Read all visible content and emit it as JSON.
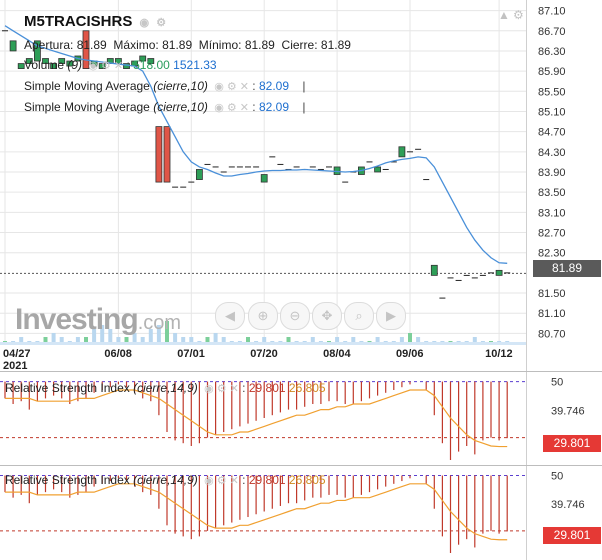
{
  "instrument": {
    "symbol": "M5TRACISHRS",
    "ohlc": {
      "open_label": "Apertura:",
      "open_value": "81.89",
      "high_label": "Máximo:",
      "high_value": "81.89",
      "low_label": "Mínimo:",
      "low_value": "81.89",
      "close_label": "Cierre:",
      "close_value": "81.89"
    },
    "volume": {
      "label": "Volume",
      "param": "(9)",
      "value_1": "518.00",
      "value_2": "1521.33"
    },
    "sma_1": {
      "label": "Simple Moving Average",
      "param": "(cierre,10)",
      "value": "82.09"
    },
    "sma_2": {
      "label": "Simple Moving Average",
      "param": "(cierre,10)",
      "value": "82.09"
    },
    "current_price": "81.89"
  },
  "watermark": {
    "brand": "Investing",
    "suffix": ".com"
  },
  "colors": {
    "sma": "#4a90d9",
    "bull": "#2e9e57",
    "bear": "#e05547",
    "rsi_bar": "#c0392b",
    "rsi_ma": "#f0a030",
    "grid": "#e6e6e6",
    "price_box": "#5a5a5a",
    "rsi_box": "#e53935"
  },
  "icons": [
    "eye-icon",
    "gear-icon",
    "close-icon",
    "arrow-left-icon",
    "zoom-in-icon",
    "zoom-out-icon",
    "crosshair-icon",
    "search-icon",
    "arrow-right-icon",
    "triangle-icon"
  ],
  "chart_data": [
    {
      "type": "candlestick",
      "title": "M5TRACISHRS",
      "x_axis": [
        "04/27",
        "06/08",
        "07/01",
        "07/20",
        "08/04",
        "09/06",
        "10/12"
      ],
      "x_year_label": "2021",
      "y_ticks": [
        80.7,
        81.1,
        81.5,
        81.89,
        82.3,
        82.7,
        83.1,
        83.5,
        83.9,
        84.3,
        84.7,
        85.1,
        85.5,
        85.9,
        86.3,
        86.7,
        87.1
      ],
      "y_tick_labels": [
        "80.70",
        "81.10",
        "81.50",
        "82.30",
        "82.70",
        "83.10",
        "83.50",
        "83.90",
        "84.30",
        "84.70",
        "85.10",
        "85.50",
        "85.90",
        "86.30",
        "86.70",
        "87.10"
      ],
      "ylim": [
        80.47,
        87.31
      ],
      "grid": true,
      "candles": [
        {
          "i": 0,
          "o": 86.7,
          "c": 86.7
        },
        {
          "i": 1,
          "o": 86.3,
          "c": 86.5
        },
        {
          "i": 2,
          "o": 85.95,
          "c": 86.05
        },
        {
          "i": 3,
          "o": 86.05,
          "c": 86.15
        },
        {
          "i": 4,
          "o": 86.1,
          "c": 86.5
        },
        {
          "i": 5,
          "o": 86.05,
          "c": 86.15
        },
        {
          "i": 6,
          "o": 85.95,
          "c": 86.05
        },
        {
          "i": 7,
          "o": 86.05,
          "c": 86.15
        },
        {
          "i": 8,
          "o": 86.0,
          "c": 86.1
        },
        {
          "i": 9,
          "o": 86.1,
          "c": 86.2
        },
        {
          "i": 10,
          "o": 86.7,
          "c": 85.95
        },
        {
          "i": 11,
          "o": 86.0,
          "c": 86.1
        },
        {
          "i": 12,
          "o": 85.95,
          "c": 86.05
        },
        {
          "i": 13,
          "o": 86.05,
          "c": 86.15
        },
        {
          "i": 14,
          "o": 86.05,
          "c": 86.15
        },
        {
          "i": 15,
          "o": 85.95,
          "c": 86.05
        },
        {
          "i": 16,
          "o": 86.0,
          "c": 86.1
        },
        {
          "i": 17,
          "o": 86.1,
          "c": 86.2
        },
        {
          "i": 18,
          "o": 86.05,
          "c": 86.15
        },
        {
          "i": 19,
          "o": 84.8,
          "c": 83.7
        },
        {
          "i": 20,
          "o": 84.8,
          "c": 83.7
        },
        {
          "i": 21,
          "o": 83.6,
          "c": 83.6
        },
        {
          "i": 22,
          "o": 83.6,
          "c": 83.6
        },
        {
          "i": 23,
          "o": 83.7,
          "c": 83.7
        },
        {
          "i": 24,
          "o": 83.75,
          "c": 83.95
        },
        {
          "i": 25,
          "o": 84.05,
          "c": 84.05
        },
        {
          "i": 26,
          "o": 84.0,
          "c": 84.0
        },
        {
          "i": 27,
          "o": 83.9,
          "c": 83.9
        },
        {
          "i": 28,
          "o": 84.0,
          "c": 84.0
        },
        {
          "i": 29,
          "o": 84.0,
          "c": 84.0
        },
        {
          "i": 30,
          "o": 84.0,
          "c": 84.0
        },
        {
          "i": 31,
          "o": 84.0,
          "c": 84.0
        },
        {
          "i": 32,
          "o": 83.7,
          "c": 83.85
        },
        {
          "i": 33,
          "o": 84.2,
          "c": 84.2
        },
        {
          "i": 34,
          "o": 84.05,
          "c": 84.05
        },
        {
          "i": 35,
          "o": 83.95,
          "c": 83.95
        },
        {
          "i": 36,
          "o": 84.0,
          "c": 84.0
        },
        {
          "i": 37,
          "o": 83.95,
          "c": 83.95
        },
        {
          "i": 38,
          "o": 84.0,
          "c": 84.0
        },
        {
          "i": 39,
          "o": 83.95,
          "c": 83.95
        },
        {
          "i": 40,
          "o": 84.0,
          "c": 84.0
        },
        {
          "i": 41,
          "o": 83.85,
          "c": 84.0
        },
        {
          "i": 42,
          "o": 83.7,
          "c": 83.7
        },
        {
          "i": 43,
          "o": 83.9,
          "c": 83.9
        },
        {
          "i": 44,
          "o": 83.85,
          "c": 84.0
        },
        {
          "i": 45,
          "o": 84.1,
          "c": 84.1
        },
        {
          "i": 46,
          "o": 83.9,
          "c": 84.0
        },
        {
          "i": 47,
          "o": 83.95,
          "c": 83.95
        },
        {
          "i": 48,
          "o": 84.1,
          "c": 84.1
        },
        {
          "i": 49,
          "o": 84.2,
          "c": 84.4
        },
        {
          "i": 50,
          "o": 84.3,
          "c": 84.3
        },
        {
          "i": 51,
          "o": 84.35,
          "c": 84.35
        },
        {
          "i": 52,
          "o": 83.75,
          "c": 83.75
        },
        {
          "i": 53,
          "o": 81.85,
          "c": 82.05
        },
        {
          "i": 54,
          "o": 81.4,
          "c": 81.4
        },
        {
          "i": 55,
          "o": 81.8,
          "c": 81.8
        },
        {
          "i": 56,
          "o": 81.75,
          "c": 81.75
        },
        {
          "i": 57,
          "o": 81.85,
          "c": 81.85
        },
        {
          "i": 58,
          "o": 81.8,
          "c": 81.8
        },
        {
          "i": 59,
          "o": 81.85,
          "c": 81.85
        },
        {
          "i": 60,
          "o": 81.9,
          "c": 81.9
        },
        {
          "i": 61,
          "o": 81.85,
          "c": 81.95
        },
        {
          "i": 62,
          "o": 81.9,
          "c": 81.9
        }
      ],
      "sma": [
        86.8,
        86.7,
        86.6,
        86.5,
        86.4,
        86.35,
        86.3,
        86.25,
        86.2,
        86.15,
        86.12,
        86.1,
        86.08,
        86.06,
        86.04,
        86.02,
        86.0,
        85.9,
        85.6,
        85.2,
        84.9,
        84.6,
        84.3,
        84.1,
        84.0,
        83.95,
        83.88,
        83.82,
        83.82,
        83.85,
        83.87,
        83.9,
        83.92,
        83.93,
        83.93,
        83.94,
        83.94,
        83.95,
        83.94,
        83.93,
        83.92,
        83.91,
        83.9,
        83.91,
        83.93,
        83.97,
        84.02,
        84.08,
        84.12,
        84.15,
        84.17,
        84.2,
        84.18,
        84.0,
        83.7,
        83.4,
        83.1,
        82.8,
        82.55,
        82.35,
        82.2,
        82.1,
        82.09
      ]
    },
    {
      "type": "bar",
      "name": "Relative Strength Index",
      "param": "(cierre,14,9)",
      "value_1": "29.801",
      "value_2": "26.805",
      "y_ticks": [
        39.746,
        50
      ],
      "y_tick_labels": [
        "39.746",
        "50"
      ],
      "ylim": [
        22.0,
        52.0
      ],
      "values": [
        44,
        42,
        43,
        40,
        43,
        44,
        45,
        44,
        42,
        43,
        44,
        46,
        47,
        48,
        49,
        48,
        46,
        44,
        43,
        38,
        32,
        29,
        28,
        27,
        28,
        30,
        31,
        32,
        33,
        34,
        35,
        36,
        37,
        38,
        39,
        40,
        40,
        41,
        42,
        42,
        43,
        43,
        42,
        42,
        43,
        44,
        45,
        46,
        47,
        48,
        49,
        50,
        47,
        38,
        28,
        22,
        25,
        27,
        24,
        29,
        30,
        29,
        29.8
      ],
      "ma": [
        44,
        44,
        44,
        44,
        43,
        43,
        43,
        43,
        43,
        44,
        44,
        44,
        45,
        46,
        47,
        47,
        47,
        46,
        45,
        44,
        42,
        40,
        38,
        36,
        34,
        32,
        31,
        31,
        31,
        32,
        32,
        33,
        34,
        35,
        36,
        37,
        38,
        38,
        39,
        40,
        40,
        41,
        41,
        42,
        42,
        42,
        43,
        44,
        45,
        46,
        47,
        47,
        47,
        45,
        41,
        37,
        34,
        31,
        29,
        28,
        27,
        26.8,
        26.8
      ]
    },
    {
      "type": "bar",
      "name": "Relative Strength Index",
      "param": "(cierre,14,9)",
      "value_1": "29.801",
      "value_2": "26.805",
      "y_ticks": [
        39.746,
        50
      ],
      "y_tick_labels": [
        "39.746",
        "50"
      ],
      "ylim": [
        22.0,
        52.0
      ],
      "values": [
        44,
        42,
        43,
        40,
        43,
        44,
        45,
        44,
        42,
        43,
        44,
        46,
        47,
        48,
        49,
        48,
        46,
        44,
        43,
        38,
        32,
        29,
        28,
        27,
        28,
        30,
        31,
        32,
        33,
        34,
        35,
        36,
        37,
        38,
        39,
        40,
        40,
        41,
        42,
        42,
        43,
        43,
        42,
        42,
        43,
        44,
        45,
        46,
        47,
        48,
        49,
        50,
        47,
        38,
        28,
        22,
        25,
        27,
        24,
        29,
        30,
        29,
        29.8
      ],
      "ma": [
        44,
        44,
        44,
        44,
        43,
        43,
        43,
        43,
        43,
        44,
        44,
        44,
        45,
        46,
        47,
        47,
        47,
        46,
        45,
        44,
        42,
        40,
        38,
        36,
        34,
        32,
        31,
        31,
        31,
        32,
        32,
        33,
        34,
        35,
        36,
        37,
        38,
        38,
        39,
        40,
        40,
        41,
        41,
        42,
        42,
        42,
        43,
        44,
        45,
        46,
        47,
        47,
        47,
        45,
        41,
        37,
        34,
        31,
        29,
        28,
        27,
        26.8,
        26.8
      ]
    }
  ],
  "rsi_panes": [
    {
      "current_value": "29.801"
    },
    {
      "current_value": "29.801"
    }
  ],
  "volume_bars": [
    1,
    1,
    2,
    1,
    1,
    2,
    3,
    2,
    1,
    2,
    2,
    4,
    5,
    4,
    2,
    2,
    3,
    2,
    4,
    5,
    6,
    3,
    2,
    2,
    1,
    2,
    3,
    2,
    1,
    1,
    2,
    1,
    2,
    1,
    1,
    2,
    1,
    1,
    2,
    1,
    1,
    2,
    1,
    2,
    1,
    1,
    2,
    1,
    1,
    2,
    3,
    2,
    1,
    1,
    1,
    1,
    1,
    1,
    2,
    1,
    1,
    1,
    1
  ]
}
